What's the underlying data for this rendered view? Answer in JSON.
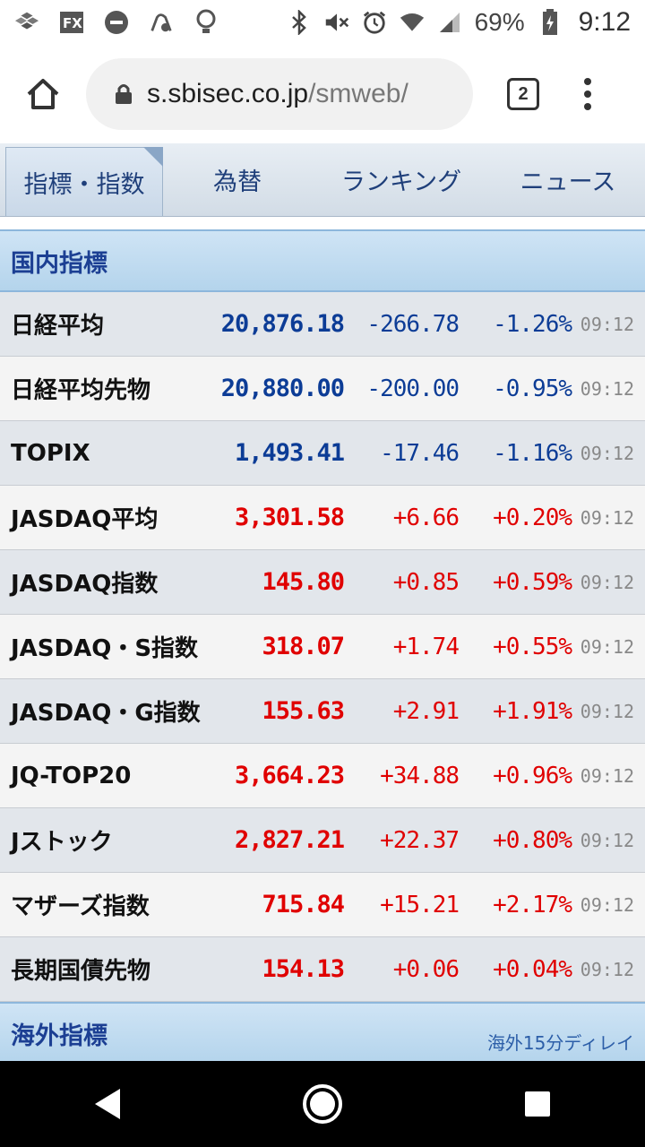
{
  "status_bar": {
    "battery": "69%",
    "time": "9:12"
  },
  "browser": {
    "url_host": "s.sbisec.co.jp",
    "url_path": "/smweb/",
    "tab_count": "2"
  },
  "tabs": [
    {
      "label": "指標・指数",
      "active": true
    },
    {
      "label": "為替",
      "active": false
    },
    {
      "label": "ランキング",
      "active": false
    },
    {
      "label": "ニュース",
      "active": false
    }
  ],
  "domestic": {
    "title": "国内指標",
    "rows": [
      {
        "name": "日経平均",
        "price": "20,876.18",
        "change": "-266.78",
        "pct": "-1.26%",
        "time": "09:12",
        "dir": "neg"
      },
      {
        "name": "日経平均先物",
        "price": "20,880.00",
        "change": "-200.00",
        "pct": "-0.95%",
        "time": "09:12",
        "dir": "neg"
      },
      {
        "name": "TOPIX",
        "price": "1,493.41",
        "change": "-17.46",
        "pct": "-1.16%",
        "time": "09:12",
        "dir": "neg"
      },
      {
        "name": "JASDAQ平均",
        "price": "3,301.58",
        "change": "+6.66",
        "pct": "+0.20%",
        "time": "09:12",
        "dir": "pos"
      },
      {
        "name": "JASDAQ指数",
        "price": "145.80",
        "change": "+0.85",
        "pct": "+0.59%",
        "time": "09:12",
        "dir": "pos"
      },
      {
        "name": "JASDAQ・S指数",
        "price": "318.07",
        "change": "+1.74",
        "pct": "+0.55%",
        "time": "09:12",
        "dir": "pos"
      },
      {
        "name": "JASDAQ・G指数",
        "price": "155.63",
        "change": "+2.91",
        "pct": "+1.91%",
        "time": "09:12",
        "dir": "pos"
      },
      {
        "name": "JQ-TOP20",
        "price": "3,664.23",
        "change": "+34.88",
        "pct": "+0.96%",
        "time": "09:12",
        "dir": "pos"
      },
      {
        "name": "Jストック",
        "price": "2,827.21",
        "change": "+22.37",
        "pct": "+0.80%",
        "time": "09:12",
        "dir": "pos"
      },
      {
        "name": "マザーズ指数",
        "price": "715.84",
        "change": "+15.21",
        "pct": "+2.17%",
        "time": "09:12",
        "dir": "pos"
      },
      {
        "name": "長期国債先物",
        "price": "154.13",
        "change": "+0.06",
        "pct": "+0.04%",
        "time": "09:12",
        "dir": "pos"
      }
    ]
  },
  "overseas": {
    "title": "海外指標",
    "note": "海外15分ディレイ"
  },
  "colors": {
    "negative": "#0c3c96",
    "positive": "#e00000",
    "header_text": "#1c3f93"
  }
}
